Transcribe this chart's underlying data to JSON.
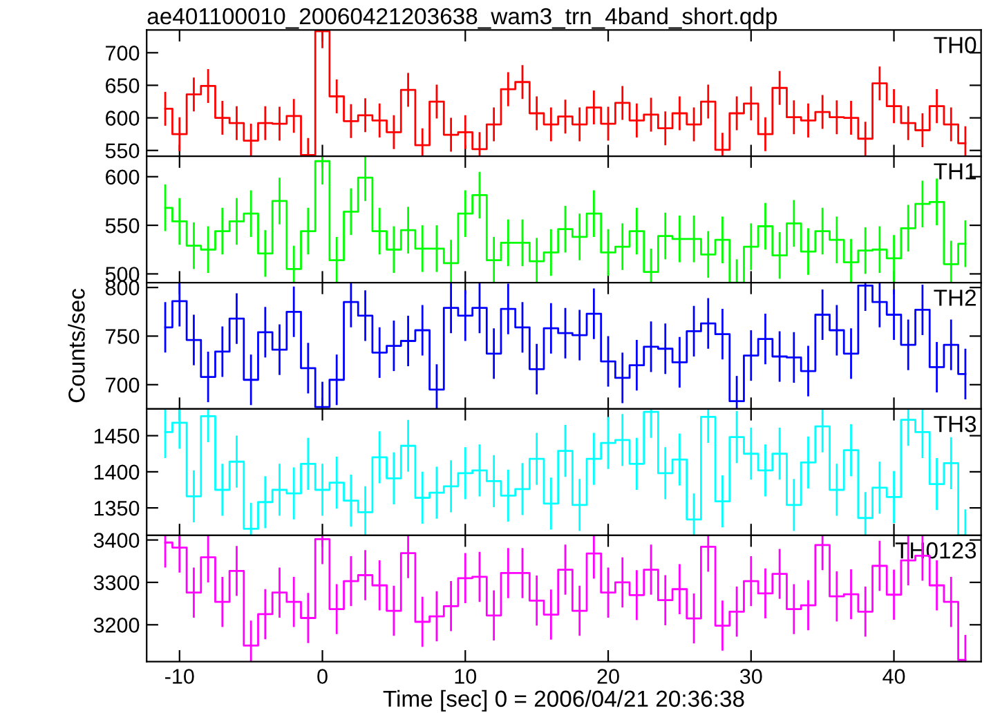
{
  "chart_data": [
    {
      "type": "step",
      "title": "ae401100010_20060421203638_wam3_trn_4band_short.qdp",
      "x": [
        -11,
        -10,
        -9,
        -8,
        -7,
        -6,
        -5,
        -4,
        -3,
        -2,
        -1,
        0,
        1,
        2,
        3,
        4,
        5,
        6,
        7,
        8,
        9,
        10,
        11,
        12,
        13,
        14,
        15,
        16,
        17,
        18,
        19,
        20,
        21,
        22,
        23,
        24,
        25,
        26,
        27,
        28,
        29,
        30,
        31,
        32,
        33,
        34,
        35,
        36,
        37,
        38,
        39,
        40,
        41,
        42,
        43,
        44,
        45
      ],
      "xlim": [
        -12.3,
        46.1
      ],
      "xticks": [
        -10,
        0,
        10,
        20,
        30,
        40
      ],
      "ylim": [
        541,
        735
      ],
      "yticks": [
        550,
        600,
        650,
        700
      ],
      "tick_labels": "y",
      "series": [
        {
          "name": "TH0",
          "color": "#ff0000",
          "errors": [
            26,
            26,
            26,
            26,
            26,
            26,
            26,
            26,
            26,
            26,
            26,
            26,
            26,
            26,
            26,
            26,
            26,
            26,
            26,
            26,
            26,
            26,
            26,
            26,
            26,
            26,
            26,
            26,
            26,
            26,
            26,
            26,
            26,
            26,
            26,
            26,
            26,
            26,
            26,
            26,
            26,
            26,
            26,
            26,
            26,
            26,
            26,
            26,
            26,
            26,
            26,
            26,
            26,
            26,
            26,
            26,
            26
          ],
          "values": [
            614,
            575,
            636,
            649,
            600,
            592,
            565,
            592,
            591,
            603,
            543,
            733,
            633,
            595,
            604,
            596,
            578,
            643,
            558,
            625,
            574,
            578,
            552,
            590,
            644,
            655,
            607,
            590,
            602,
            590,
            616,
            591,
            623,
            596,
            605,
            584,
            607,
            590,
            625,
            551,
            607,
            622,
            575,
            646,
            601,
            596,
            609,
            601,
            600,
            568,
            653,
            618,
            592,
            581,
            618,
            590,
            561
          ]
        }
      ]
    },
    {
      "type": "step",
      "x": [
        -11,
        -10,
        -9,
        -8,
        -7,
        -6,
        -5,
        -4,
        -3,
        -2,
        -1,
        0,
        1,
        2,
        3,
        4,
        5,
        6,
        7,
        8,
        9,
        10,
        11,
        12,
        13,
        14,
        15,
        16,
        17,
        18,
        19,
        20,
        21,
        22,
        23,
        24,
        25,
        26,
        27,
        28,
        29,
        30,
        31,
        32,
        33,
        34,
        35,
        36,
        37,
        38,
        39,
        40,
        41,
        42,
        43,
        44,
        45
      ],
      "xlim": [
        -12.3,
        46.1
      ],
      "xticks": [
        -10,
        0,
        10,
        20,
        30,
        40
      ],
      "ylim": [
        491,
        621
      ],
      "yticks": [
        500,
        550,
        600
      ],
      "tick_labels": "y",
      "series": [
        {
          "name": "TH1",
          "color": "#00ff00",
          "errors": [
            24,
            24,
            24,
            24,
            24,
            24,
            24,
            24,
            24,
            24,
            24,
            24,
            24,
            24,
            24,
            24,
            24,
            24,
            24,
            24,
            24,
            24,
            24,
            24,
            24,
            24,
            24,
            24,
            24,
            24,
            24,
            24,
            24,
            24,
            24,
            24,
            24,
            24,
            24,
            24,
            24,
            24,
            24,
            24,
            24,
            24,
            24,
            24,
            24,
            24,
            24,
            24,
            24,
            24,
            24,
            24,
            24
          ],
          "values": [
            568,
            554,
            529,
            525,
            544,
            554,
            562,
            521,
            575,
            505,
            544,
            616,
            514,
            564,
            599,
            544,
            525,
            545,
            526,
            526,
            511,
            562,
            581,
            514,
            532,
            532,
            513,
            522,
            546,
            538,
            562,
            522,
            528,
            544,
            502,
            539,
            536,
            536,
            520,
            535,
            491,
            528,
            549,
            519,
            552,
            523,
            544,
            535,
            512,
            524,
            525,
            516,
            547,
            572,
            574,
            510,
            531
          ]
        }
      ]
    },
    {
      "type": "step",
      "ylabel": "Counts/sec",
      "x": [
        -11,
        -10,
        -9,
        -8,
        -7,
        -6,
        -5,
        -4,
        -3,
        -2,
        -1,
        0,
        1,
        2,
        3,
        4,
        5,
        6,
        7,
        8,
        9,
        10,
        11,
        12,
        13,
        14,
        15,
        16,
        17,
        18,
        19,
        20,
        21,
        22,
        23,
        24,
        25,
        26,
        27,
        28,
        29,
        30,
        31,
        32,
        33,
        34,
        35,
        36,
        37,
        38,
        39,
        40,
        41,
        42,
        43,
        44,
        45
      ],
      "xlim": [
        -12.3,
        46.1
      ],
      "xticks": [
        -10,
        0,
        10,
        20,
        30,
        40
      ],
      "ylim": [
        675,
        805
      ],
      "yticks": [
        700,
        750,
        800
      ],
      "tick_labels": "y",
      "series": [
        {
          "name": "TH2",
          "color": "#0000ff",
          "errors": [
            26,
            26,
            26,
            26,
            26,
            26,
            26,
            26,
            26,
            26,
            26,
            26,
            26,
            26,
            26,
            26,
            26,
            26,
            26,
            26,
            26,
            26,
            26,
            26,
            26,
            26,
            26,
            26,
            26,
            26,
            26,
            26,
            26,
            26,
            26,
            26,
            26,
            26,
            26,
            26,
            26,
            26,
            26,
            26,
            26,
            26,
            26,
            26,
            26,
            26,
            26,
            26,
            26,
            26,
            26,
            26,
            26
          ],
          "values": [
            759,
            786,
            746,
            708,
            734,
            768,
            705,
            754,
            736,
            775,
            717,
            677,
            705,
            785,
            771,
            733,
            740,
            745,
            756,
            695,
            779,
            771,
            779,
            732,
            778,
            759,
            716,
            758,
            753,
            751,
            773,
            724,
            707,
            720,
            739,
            737,
            723,
            755,
            763,
            752,
            683,
            730,
            747,
            729,
            728,
            714,
            772,
            756,
            732,
            802,
            785,
            772,
            741,
            777,
            718,
            741,
            711
          ]
        }
      ]
    },
    {
      "type": "step",
      "x": [
        -11,
        -10,
        -9,
        -8,
        -7,
        -6,
        -5,
        -4,
        -3,
        -2,
        -1,
        0,
        1,
        2,
        3,
        4,
        5,
        6,
        7,
        8,
        9,
        10,
        11,
        12,
        13,
        14,
        15,
        16,
        17,
        18,
        19,
        20,
        21,
        22,
        23,
        24,
        25,
        26,
        27,
        28,
        29,
        30,
        31,
        32,
        33,
        34,
        35,
        36,
        37,
        38,
        39,
        40,
        41,
        42,
        43,
        44,
        45
      ],
      "xlim": [
        -12.3,
        46.1
      ],
      "xticks": [
        -10,
        0,
        10,
        20,
        30,
        40
      ],
      "ylim": [
        1312,
        1487
      ],
      "yticks": [
        1350,
        1400,
        1450
      ],
      "tick_labels": "y",
      "series": [
        {
          "name": "TH3",
          "color": "#00ffff",
          "errors": [
            36,
            36,
            36,
            36,
            36,
            36,
            36,
            36,
            36,
            36,
            36,
            36,
            36,
            36,
            36,
            36,
            36,
            36,
            36,
            36,
            36,
            36,
            36,
            36,
            36,
            36,
            36,
            36,
            36,
            36,
            36,
            36,
            36,
            36,
            36,
            36,
            36,
            36,
            36,
            36,
            36,
            36,
            36,
            36,
            36,
            36,
            36,
            36,
            36,
            36,
            36,
            36,
            36,
            36,
            36,
            36,
            36
          ],
          "values": [
            1455,
            1468,
            1366,
            1477,
            1375,
            1414,
            1321,
            1358,
            1375,
            1370,
            1411,
            1375,
            1385,
            1360,
            1344,
            1420,
            1391,
            1436,
            1364,
            1371,
            1380,
            1398,
            1402,
            1387,
            1367,
            1376,
            1418,
            1356,
            1429,
            1354,
            1418,
            1440,
            1444,
            1411,
            1483,
            1398,
            1417,
            1334,
            1476,
            1359,
            1448,
            1425,
            1402,
            1425,
            1354,
            1413,
            1463,
            1375,
            1430,
            1336,
            1378,
            1365,
            1472,
            1455,
            1383,
            1412,
            1312
          ]
        }
      ]
    },
    {
      "type": "step",
      "xlabel": "Time [sec] 0 = 2006/04/21 20:36:38",
      "x": [
        -11,
        -10,
        -9,
        -8,
        -7,
        -6,
        -5,
        -4,
        -3,
        -2,
        -1,
        0,
        1,
        2,
        3,
        4,
        5,
        6,
        7,
        8,
        9,
        10,
        11,
        12,
        13,
        14,
        15,
        16,
        17,
        18,
        19,
        20,
        21,
        22,
        23,
        24,
        25,
        26,
        27,
        28,
        29,
        30,
        31,
        32,
        33,
        34,
        35,
        36,
        37,
        38,
        39,
        40,
        41,
        42,
        43,
        44,
        45
      ],
      "xlim": [
        -12.3,
        46.1
      ],
      "xticks": [
        -10,
        0,
        10,
        20,
        30,
        40
      ],
      "ylim": [
        3113,
        3411
      ],
      "yticks": [
        3200,
        3300,
        3400
      ],
      "series": [
        {
          "name": "TH0123",
          "color": "#ff00ff",
          "errors": [
            59,
            59,
            59,
            59,
            59,
            59,
            59,
            59,
            59,
            59,
            59,
            59,
            59,
            59,
            59,
            59,
            59,
            59,
            59,
            59,
            59,
            59,
            59,
            59,
            59,
            59,
            59,
            59,
            59,
            59,
            59,
            59,
            59,
            59,
            59,
            59,
            59,
            59,
            59,
            59,
            59,
            59,
            59,
            59,
            59,
            59,
            59,
            59,
            59,
            59,
            59,
            59,
            59,
            59,
            59,
            59,
            59
          ],
          "values": [
            3394,
            3382,
            3276,
            3359,
            3254,
            3327,
            3151,
            3225,
            3276,
            3254,
            3216,
            3402,
            3237,
            3303,
            3317,
            3293,
            3233,
            3369,
            3207,
            3220,
            3244,
            3310,
            3313,
            3222,
            3322,
            3322,
            3257,
            3224,
            3330,
            3233,
            3368,
            3276,
            3300,
            3270,
            3330,
            3258,
            3284,
            3215,
            3384,
            3198,
            3231,
            3303,
            3274,
            3320,
            3237,
            3246,
            3388,
            3267,
            3272,
            3231,
            3339,
            3271,
            3352,
            3363,
            3293,
            3254,
            3117
          ]
        }
      ]
    }
  ]
}
